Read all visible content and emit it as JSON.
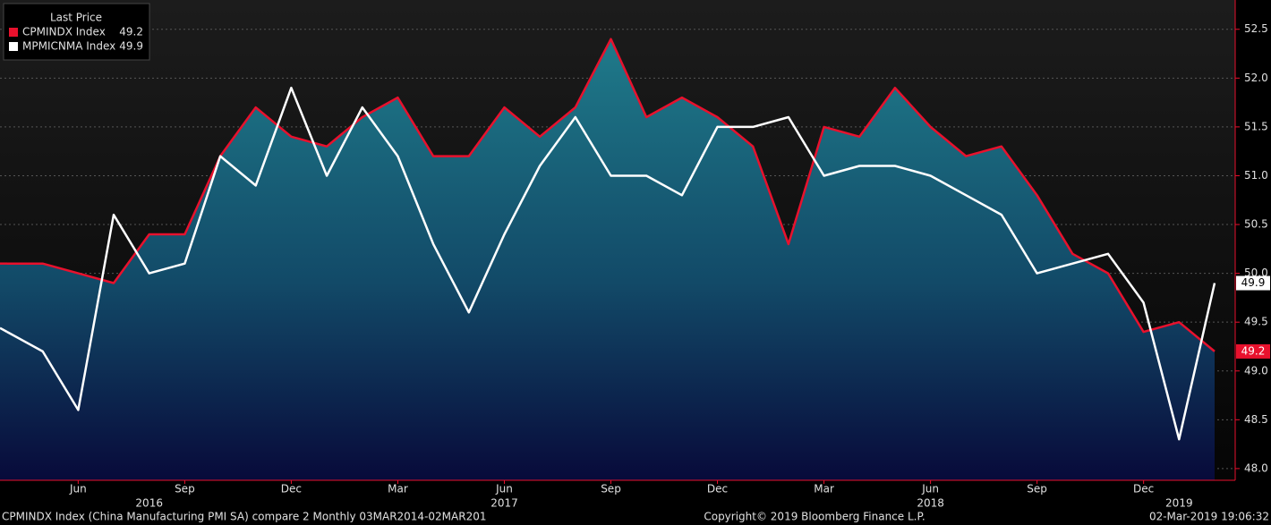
{
  "chart_data": {
    "type": "line",
    "legend_title": "Last Price",
    "x": [
      "2016-04",
      "2016-05",
      "2016-06",
      "2016-07",
      "2016-08",
      "2016-09",
      "2016-10",
      "2016-11",
      "2016-12",
      "2017-01",
      "2017-02",
      "2017-03",
      "2017-04",
      "2017-05",
      "2017-06",
      "2017-07",
      "2017-08",
      "2017-09",
      "2017-10",
      "2017-11",
      "2017-12",
      "2018-01",
      "2018-02",
      "2018-03",
      "2018-04",
      "2018-05",
      "2018-06",
      "2018-07",
      "2018-08",
      "2018-09",
      "2018-10",
      "2018-11",
      "2018-12",
      "2019-01",
      "2019-02"
    ],
    "series": [
      {
        "name": "CPMINDX Index",
        "color": "#e8112d",
        "area": true,
        "values": [
          50.1,
          50.1,
          50.0,
          49.9,
          50.4,
          50.4,
          51.2,
          51.7,
          51.4,
          51.3,
          51.6,
          51.8,
          51.2,
          51.2,
          51.7,
          51.4,
          51.7,
          52.4,
          51.6,
          51.8,
          51.6,
          51.3,
          50.3,
          51.5,
          51.4,
          51.9,
          51.5,
          51.2,
          51.3,
          50.8,
          50.2,
          50.0,
          49.4,
          49.5,
          49.2
        ]
      },
      {
        "name": "MPMICNMA Index",
        "color": "#ffffff",
        "area": false,
        "values": [
          49.4,
          49.2,
          48.6,
          50.6,
          50.0,
          50.1,
          51.2,
          50.9,
          51.9,
          51.0,
          51.7,
          51.2,
          50.3,
          49.6,
          50.4,
          51.1,
          51.6,
          51.0,
          51.0,
          50.8,
          51.5,
          51.5,
          51.6,
          51.0,
          51.1,
          51.1,
          51.0,
          50.8,
          50.6,
          50.0,
          50.1,
          50.2,
          49.7,
          48.3,
          49.9
        ]
      }
    ],
    "xlim": [
      "2016-04",
      "2019-02"
    ],
    "xticks": [
      {
        "value": "2016-06",
        "label": "Jun"
      },
      {
        "value": "2016-09",
        "label": "Sep"
      },
      {
        "value": "2016-12",
        "label": "Dec"
      },
      {
        "value": "2017-03",
        "label": "Mar"
      },
      {
        "value": "2017-06",
        "label": "Jun"
      },
      {
        "value": "2017-09",
        "label": "Sep"
      },
      {
        "value": "2017-12",
        "label": "Dec"
      },
      {
        "value": "2018-03",
        "label": "Mar"
      },
      {
        "value": "2018-06",
        "label": "Jun"
      },
      {
        "value": "2018-09",
        "label": "Sep"
      },
      {
        "value": "2018-12",
        "label": "Dec"
      }
    ],
    "year_labels": [
      {
        "value": "2016-08",
        "label": "2016"
      },
      {
        "value": "2017-06",
        "label": "2017"
      },
      {
        "value": "2018-06",
        "label": "2018"
      },
      {
        "value": "2019-01",
        "label": "2019"
      }
    ],
    "ylim": [
      47.88,
      52.8
    ],
    "yticks": [
      {
        "value": 48.0,
        "label": "48.0"
      },
      {
        "value": 48.5,
        "label": "48.5"
      },
      {
        "value": 49.0,
        "label": "49.0"
      },
      {
        "value": 49.5,
        "label": "49.5"
      },
      {
        "value": 50.0,
        "label": "50.0"
      },
      {
        "value": 50.5,
        "label": "50.5"
      },
      {
        "value": 51.0,
        "label": "51.0"
      },
      {
        "value": 51.5,
        "label": "51.5"
      },
      {
        "value": 52.0,
        "label": "52.0"
      },
      {
        "value": 52.5,
        "label": "52.5"
      }
    ],
    "grid": true,
    "footer": {
      "left": "CPMINDX Index (China Manufacturing PMI SA) compare 2  Monthly 03MAR2014-02MAR201",
      "center": "Copyright© 2019 Bloomberg Finance L.P.",
      "right": "02-Mar-2019 19:06:32"
    }
  }
}
